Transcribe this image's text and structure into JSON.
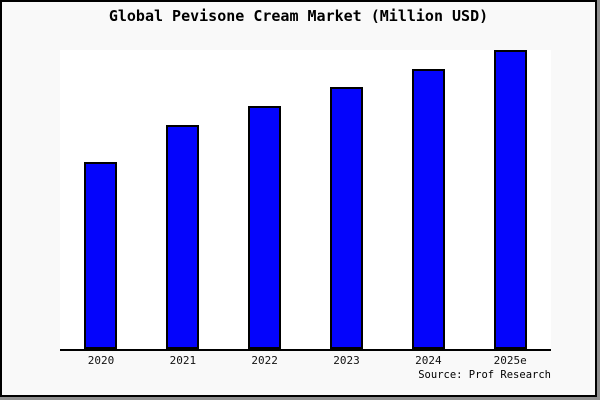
{
  "page": {
    "background": "#f9f9f9",
    "frame_border_color": "#000000",
    "shadow_color": "#8f8f8f"
  },
  "header": {
    "title": "Global Pevisone Cream Market (Million USD)"
  },
  "footer": {
    "source": "Source: Prof Research"
  },
  "chart_data": {
    "type": "bar",
    "title": "Global Pevisone Cream Market (Million USD)",
    "categories": [
      "2020",
      "2021",
      "2022",
      "2023",
      "2024",
      "2025e"
    ],
    "values": [
      62.5,
      74.9,
      81.3,
      87.6,
      93.6,
      100
    ],
    "units": "estimated relative height (% of tallest bar); chart shows no y-axis tick values",
    "xlabel": "",
    "ylabel": "",
    "ylim": [
      0,
      100
    ],
    "grid": false,
    "legend": false,
    "bar_fill": "#0404fc",
    "bar_border": "#000000",
    "plot_background": "#ffffff",
    "source": "Source: Prof Research"
  }
}
